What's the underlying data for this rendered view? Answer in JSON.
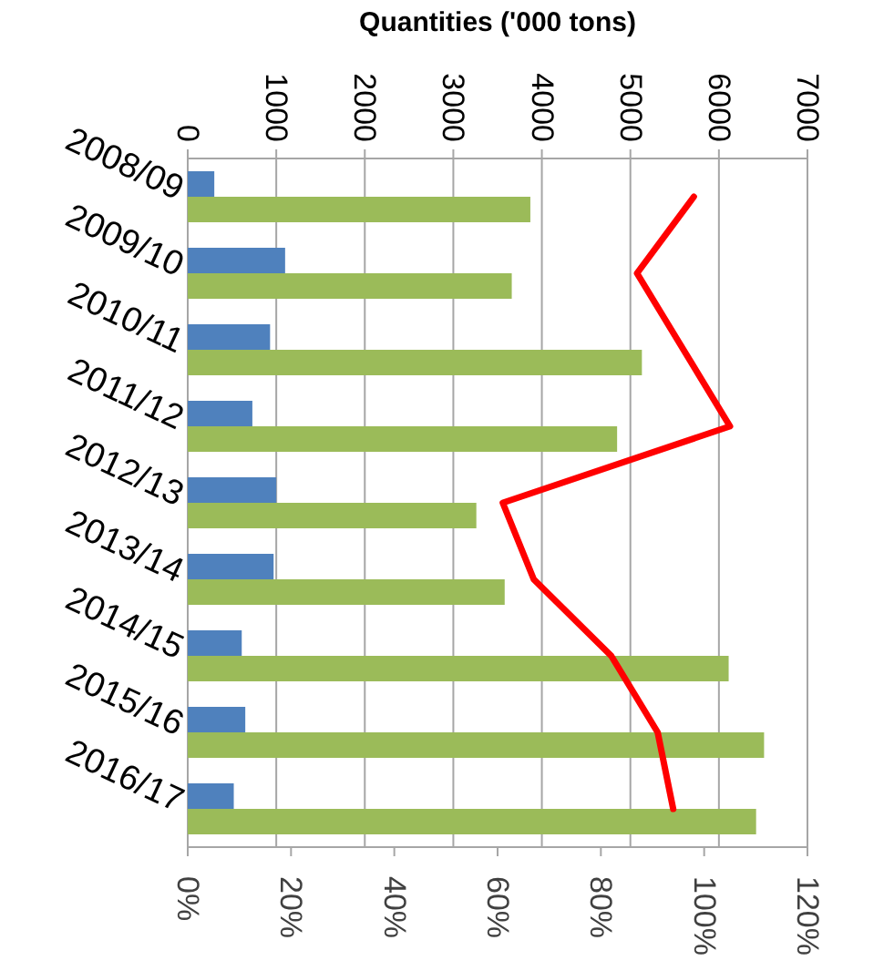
{
  "chart_data": {
    "type": "bar",
    "orientation": "horizontal",
    "xlabel": "Quantities ('000 tons)",
    "categories": [
      "2008/09",
      "2009/10",
      "2010/11",
      "2011/12",
      "2012/13",
      "2013/14",
      "2014/15",
      "2015/16",
      "2016/17"
    ],
    "series": [
      {
        "color": "#4f81bd",
        "values": [
          300,
          1100,
          930,
          730,
          1000,
          970,
          610,
          650,
          520
        ]
      },
      {
        "color": "#9bbb59",
        "values": [
          3870,
          3660,
          5130,
          4850,
          3260,
          3580,
          6110,
          6510,
          6420
        ]
      },
      {
        "type": "line",
        "axis": "x2",
        "color": "#ff0000",
        "values": [
          98,
          87,
          96,
          105,
          61,
          67,
          82,
          91,
          94
        ]
      }
    ],
    "xlim": [
      0,
      7000
    ],
    "xticks": [
      0,
      1000,
      2000,
      3000,
      4000,
      5000,
      6000,
      7000
    ],
    "x2lim": [
      0,
      120
    ],
    "x2ticks": [
      {
        "value": 0,
        "label": "0%"
      },
      {
        "value": 20,
        "label": "20%"
      },
      {
        "value": 40,
        "label": "40%"
      },
      {
        "value": 60,
        "label": "60%"
      },
      {
        "value": 80,
        "label": "80%"
      },
      {
        "value": 100,
        "label": "100%"
      },
      {
        "value": 120,
        "label": "120%"
      }
    ],
    "grid": "x"
  }
}
